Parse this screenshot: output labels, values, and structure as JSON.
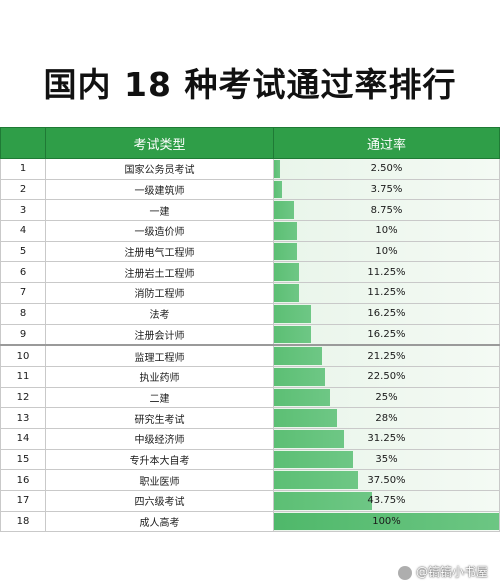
{
  "title": "国内 18 种考试通过率排行",
  "chart_data": {
    "type": "table",
    "columns": [
      "",
      "考试类型",
      "通过率"
    ],
    "rows": [
      {
        "rank": "1",
        "exam": "国家公务员考试",
        "rate_label": "2.50%",
        "rate": 2.5
      },
      {
        "rank": "2",
        "exam": "一级建筑师",
        "rate_label": "3.75%",
        "rate": 3.75
      },
      {
        "rank": "3",
        "exam": "一建",
        "rate_label": "8.75%",
        "rate": 8.75
      },
      {
        "rank": "4",
        "exam": "一级造价师",
        "rate_label": "10%",
        "rate": 10
      },
      {
        "rank": "5",
        "exam": "注册电气工程师",
        "rate_label": "10%",
        "rate": 10
      },
      {
        "rank": "6",
        "exam": "注册岩土工程师",
        "rate_label": "11.25%",
        "rate": 11.25
      },
      {
        "rank": "7",
        "exam": "消防工程师",
        "rate_label": "11.25%",
        "rate": 11.25
      },
      {
        "rank": "8",
        "exam": "法考",
        "rate_label": "16.25%",
        "rate": 16.25
      },
      {
        "rank": "9",
        "exam": "注册会计师",
        "rate_label": "16.25%",
        "rate": 16.25
      },
      {
        "rank": "10",
        "exam": "监理工程师",
        "rate_label": "21.25%",
        "rate": 21.25
      },
      {
        "rank": "11",
        "exam": "执业药师",
        "rate_label": "22.50%",
        "rate": 22.5
      },
      {
        "rank": "12",
        "exam": "二建",
        "rate_label": "25%",
        "rate": 25
      },
      {
        "rank": "13",
        "exam": "研究生考试",
        "rate_label": "28%",
        "rate": 28
      },
      {
        "rank": "14",
        "exam": "中级经济师",
        "rate_label": "31.25%",
        "rate": 31.25
      },
      {
        "rank": "15",
        "exam": "专升本大自考",
        "rate_label": "35%",
        "rate": 35
      },
      {
        "rank": "16",
        "exam": "职业医师",
        "rate_label": "37.50%",
        "rate": 37.5
      },
      {
        "rank": "17",
        "exam": "四六级考试",
        "rate_label": "43.75%",
        "rate": 43.75
      },
      {
        "rank": "18",
        "exam": "成人高考",
        "rate_label": "100%",
        "rate": 100
      }
    ],
    "bar_scale_max": 100,
    "bar_color": "#5cbf74",
    "header_color": "#2f9e48"
  },
  "watermark": "@镐镐小书屋"
}
